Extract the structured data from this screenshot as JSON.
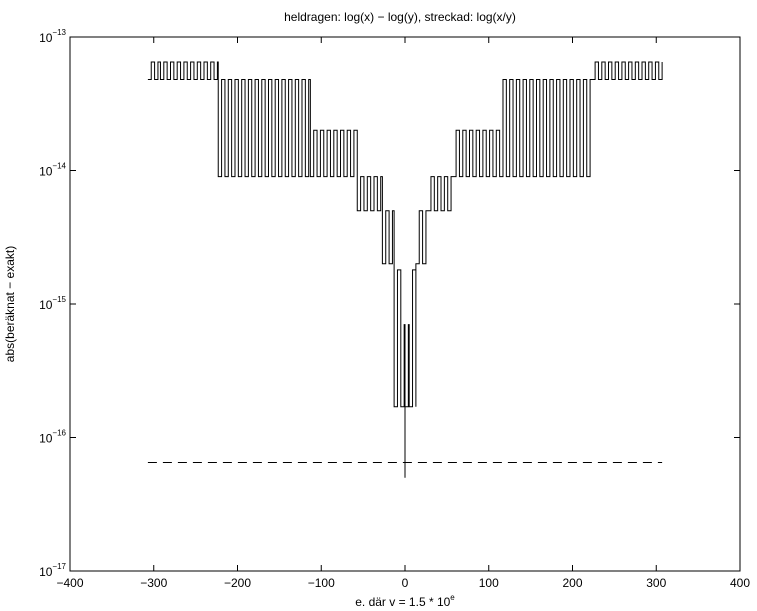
{
  "chart_data": {
    "type": "line",
    "title": "heldragen: log(x) − log(y), streckad: log(x/y)",
    "xlabel": {
      "base": "e. där v = 1.5 * 10",
      "sup": "e"
    },
    "ylabel": "abs(beräknat − exakt)",
    "xlim": [
      -400,
      400
    ],
    "ylim": [
      1e-17,
      1e-13
    ],
    "yscale": "log",
    "grid": false,
    "xticks": [
      -400,
      -300,
      -200,
      -100,
      0,
      100,
      200,
      300,
      400
    ],
    "xtick_labels": [
      "−400",
      "−300",
      "−200",
      "−100",
      "0",
      "100",
      "200",
      "300",
      "400"
    ],
    "yticks": [
      {
        "value": 1e-17,
        "base": "10",
        "exp": "−17"
      },
      {
        "value": 1e-16,
        "base": "10",
        "exp": "−16"
      },
      {
        "value": 1e-15,
        "base": "10",
        "exp": "−15"
      },
      {
        "value": 1e-14,
        "base": "10",
        "exp": "−14"
      },
      {
        "value": 1e-13,
        "base": "10",
        "exp": "−13"
      }
    ],
    "series": [
      {
        "style": "solid",
        "color": "#000000",
        "segments": [
          {
            "x_range": [
              -307,
              -292
            ],
            "levels": [
              4.8e-14,
              6.5e-14
            ],
            "oscillating": true
          },
          {
            "x_range": [
              -292,
              -223
            ],
            "levels": [
              4.8e-14,
              6.5e-14
            ],
            "oscillating": true
          },
          {
            "x_range": [
              -223,
              -113
            ],
            "levels": [
              9e-15,
              4.8e-14
            ],
            "oscillating": true
          },
          {
            "x_range": [
              -113,
              -57
            ],
            "levels": [
              9e-15,
              2e-14
            ],
            "oscillating": true
          },
          {
            "x_range": [
              -57,
              -27
            ],
            "levels": [
              5e-15,
              9e-15
            ],
            "oscillating": true
          },
          {
            "x_range": [
              -27,
              -13
            ],
            "levels": [
              2e-15,
              5e-15
            ],
            "oscillating": true
          },
          {
            "x_range": [
              -13,
              -5
            ],
            "levels": [
              1.7e-16,
              1.8e-15
            ],
            "oscillating": true
          },
          {
            "x_range": [
              -5,
              0
            ],
            "levels": [
              1.7e-16,
              7e-16
            ],
            "oscillating": true
          },
          {
            "point": [
              0,
              5e-17
            ]
          },
          {
            "x_range": [
              0,
              5
            ],
            "levels": [
              1.7e-16,
              7e-16
            ],
            "oscillating": true
          },
          {
            "x_range": [
              5,
              13
            ],
            "levels": [
              1.7e-16,
              1.8e-15
            ],
            "oscillating": true
          },
          {
            "x_range": [
              13,
              27
            ],
            "levels": [
              2e-15,
              5e-15
            ],
            "oscillating": true
          },
          {
            "x_range": [
              27,
              57
            ],
            "levels": [
              5e-15,
              9e-15
            ],
            "oscillating": true
          },
          {
            "x_range": [
              57,
              113
            ],
            "levels": [
              9e-15,
              2e-14
            ],
            "oscillating": true
          },
          {
            "x_range": [
              113,
              223
            ],
            "levels": [
              9e-15,
              4.8e-14
            ],
            "oscillating": true
          },
          {
            "x_range": [
              223,
              307
            ],
            "levels": [
              4.8e-14,
              6.5e-14
            ],
            "oscillating": true
          }
        ]
      },
      {
        "style": "dashed",
        "color": "#000000",
        "x": [
          -307,
          307
        ],
        "y": [
          6.5e-17,
          6.5e-17
        ]
      }
    ]
  }
}
